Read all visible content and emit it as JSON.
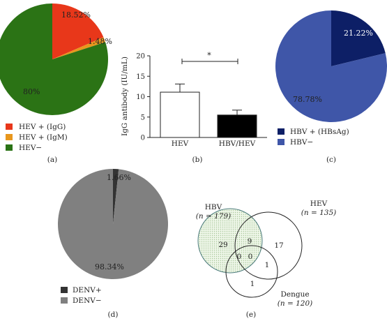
{
  "chart_data": [
    {
      "panel": "(a)",
      "type": "pie",
      "slices": [
        {
          "name": "HEV + (IgG)",
          "value": 18.52,
          "label": "18.52%",
          "color": "#e8371a"
        },
        {
          "name": "HEV + (IgM)",
          "value": 1.48,
          "label": "1.48%",
          "color": "#e8971d"
        },
        {
          "name": "HEV−",
          "value": 80,
          "label": "80%",
          "color": "#2b7315"
        }
      ]
    },
    {
      "panel": "(b)",
      "type": "bar",
      "categories": [
        "HEV",
        "HBV/HEV"
      ],
      "values": [
        11.1,
        5.5
      ],
      "errors": [
        2.0,
        1.2
      ],
      "colors": [
        "#ffffff",
        "#000000"
      ],
      "ylabel": "IgG antibody (IU/mL)",
      "ylim": [
        0,
        20
      ],
      "yticks": [
        "0",
        "5",
        "10",
        "15",
        "20"
      ],
      "significance": "*"
    },
    {
      "panel": "(c)",
      "type": "pie",
      "slices": [
        {
          "name": "HBV + (HBsAg)",
          "value": 21.22,
          "label": "21.22%",
          "color": "#0d1f66"
        },
        {
          "name": "HBV−",
          "value": 78.78,
          "label": "78.78%",
          "color": "#3f56a8"
        }
      ]
    },
    {
      "panel": "(d)",
      "type": "pie",
      "slices": [
        {
          "name": "DENV+",
          "value": 1.66,
          "label": "1.66%",
          "color": "#333333"
        },
        {
          "name": "DENV−",
          "value": 98.34,
          "label": "98.34%",
          "color": "#808080"
        }
      ]
    },
    {
      "panel": "(e)",
      "type": "venn",
      "sets": [
        {
          "name": "HBV",
          "n": "(n = 179)"
        },
        {
          "name": "HEV",
          "n": "(n = 135)"
        },
        {
          "name": "Dengue",
          "n": "(n = 120)"
        }
      ],
      "regions": {
        "hbv_only": 29,
        "hbv_hev": 9,
        "hev_only": 17,
        "hbv_dengue": 0,
        "all_three": 0,
        "hev_dengue": 1,
        "dengue_only": 1
      }
    }
  ]
}
